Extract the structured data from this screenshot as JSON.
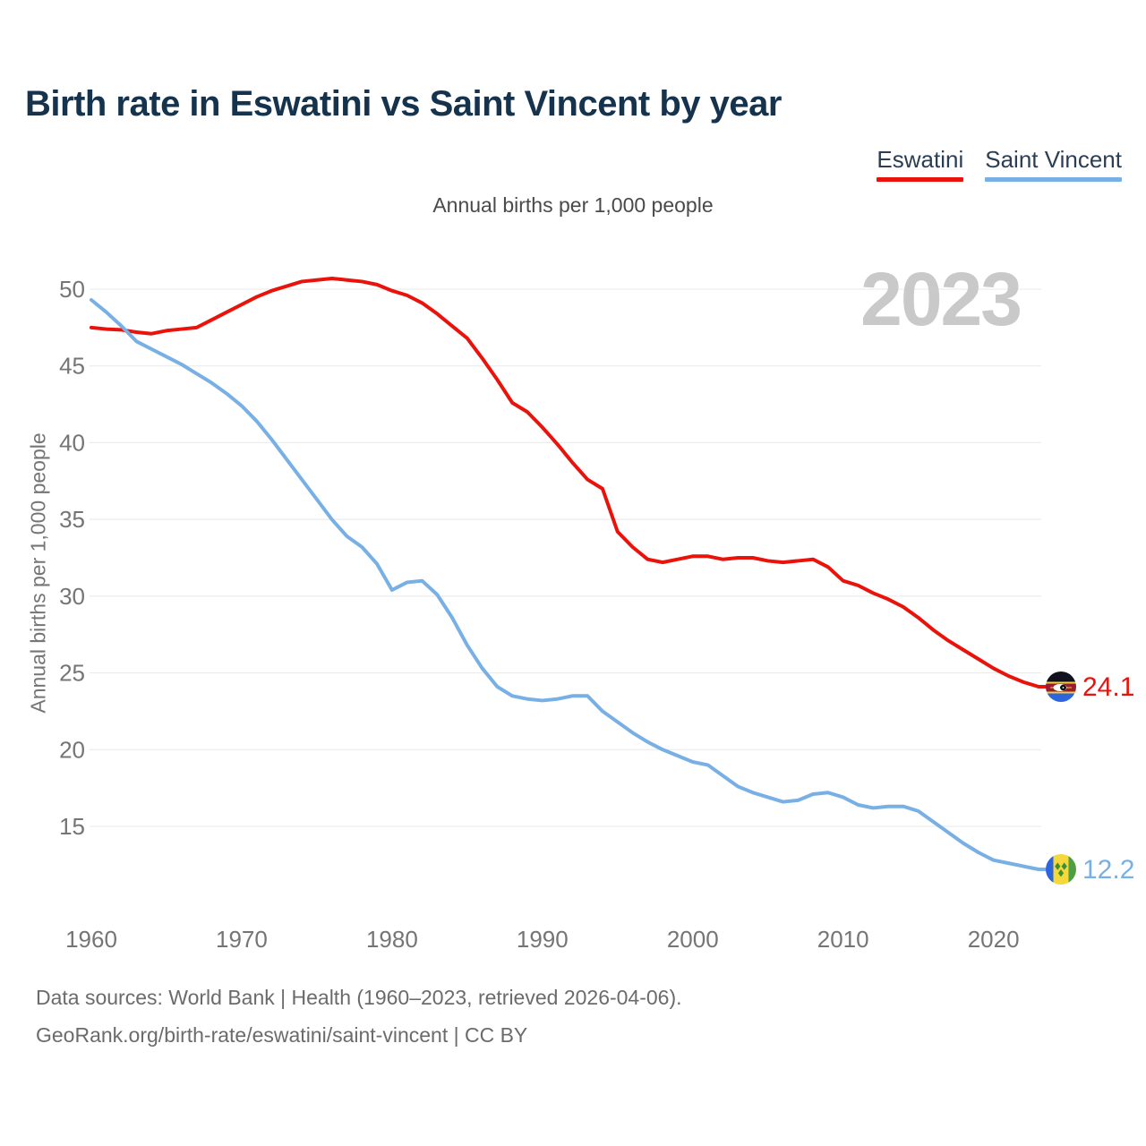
{
  "page": {
    "title": "Birth rate in Eswatini vs Saint Vincent by year",
    "watermark": "2023",
    "footer_line1": "Data sources: World Bank | Health (1960–2023, retrieved 2026-04-06).",
    "footer_line2": "GeoRank.org/birth-rate/eswatini/saint-vincent | CC BY"
  },
  "chart_data": {
    "type": "line",
    "title": "Annual births per 1,000 people",
    "xlabel": "Year",
    "ylabel": "Annual births per 1,000 people",
    "x": [
      1960,
      1961,
      1962,
      1963,
      1964,
      1965,
      1966,
      1967,
      1968,
      1969,
      1970,
      1971,
      1972,
      1973,
      1974,
      1975,
      1976,
      1977,
      1978,
      1979,
      1980,
      1981,
      1982,
      1983,
      1984,
      1985,
      1986,
      1987,
      1988,
      1989,
      1990,
      1991,
      1992,
      1993,
      1994,
      1995,
      1996,
      1997,
      1998,
      1999,
      2000,
      2001,
      2002,
      2003,
      2004,
      2005,
      2006,
      2007,
      2008,
      2009,
      2010,
      2011,
      2012,
      2013,
      2014,
      2015,
      2016,
      2017,
      2018,
      2019,
      2020,
      2021,
      2022,
      2023
    ],
    "series": [
      {
        "name": "Eswatini",
        "color": "#ea130c",
        "end_label": "24.1",
        "flag": "eswatini",
        "values": [
          47.5,
          47.4,
          47.35,
          47.2,
          47.1,
          47.3,
          47.4,
          47.5,
          48.0,
          48.5,
          49.0,
          49.5,
          49.9,
          50.2,
          50.5,
          50.6,
          50.7,
          50.6,
          50.5,
          50.3,
          49.9,
          49.6,
          49.1,
          48.4,
          47.6,
          46.8,
          45.5,
          44.1,
          42.6,
          42.0,
          41.0,
          39.9,
          38.7,
          37.6,
          37.0,
          34.2,
          33.2,
          32.4,
          32.2,
          32.4,
          32.6,
          32.6,
          32.4,
          32.5,
          32.5,
          32.3,
          32.2,
          32.3,
          32.4,
          31.9,
          31.0,
          30.7,
          30.2,
          29.8,
          29.3,
          28.6,
          27.8,
          27.1,
          26.5,
          25.9,
          25.3,
          24.8,
          24.4,
          24.1
        ]
      },
      {
        "name": "Saint Vincent",
        "color": "#78b0e5",
        "end_label": "12.2",
        "flag": "saint-vincent",
        "values": [
          49.3,
          48.5,
          47.6,
          46.6,
          46.1,
          45.6,
          45.1,
          44.5,
          43.9,
          43.2,
          42.4,
          41.4,
          40.2,
          38.9,
          37.6,
          36.3,
          35.0,
          33.9,
          33.2,
          32.1,
          30.4,
          30.9,
          31.0,
          30.1,
          28.6,
          26.8,
          25.3,
          24.1,
          23.5,
          23.3,
          23.2,
          23.3,
          23.5,
          23.5,
          22.5,
          21.8,
          21.1,
          20.5,
          20.0,
          19.6,
          19.2,
          19.0,
          18.3,
          17.6,
          17.2,
          16.9,
          16.6,
          16.7,
          17.1,
          17.2,
          16.9,
          16.4,
          16.2,
          16.3,
          16.3,
          16.0,
          15.3,
          14.6,
          13.9,
          13.3,
          12.8,
          12.6,
          12.4,
          12.2
        ]
      }
    ],
    "xticks": [
      1960,
      1970,
      1980,
      1990,
      2000,
      2010,
      2020
    ],
    "yticks": [
      15,
      20,
      25,
      30,
      35,
      40,
      45,
      50
    ],
    "ylim": [
      11.5,
      52
    ],
    "xlim": [
      1960,
      2023
    ],
    "grid": true,
    "legend_position": "top-right"
  }
}
